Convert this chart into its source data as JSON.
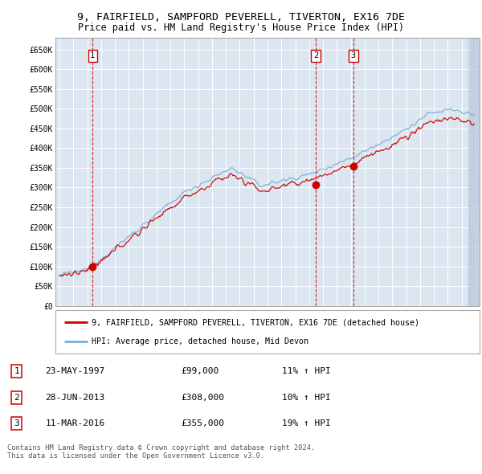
{
  "title": "9, FAIRFIELD, SAMPFORD PEVERELL, TIVERTON, EX16 7DE",
  "subtitle": "Price paid vs. HM Land Registry's House Price Index (HPI)",
  "title_fontsize": 9.5,
  "subtitle_fontsize": 8.5,
  "ylabel_ticks": [
    "£0",
    "£50K",
    "£100K",
    "£150K",
    "£200K",
    "£250K",
    "£300K",
    "£350K",
    "£400K",
    "£450K",
    "£500K",
    "£550K",
    "£600K",
    "£650K"
  ],
  "ytick_values": [
    0,
    50000,
    100000,
    150000,
    200000,
    250000,
    300000,
    350000,
    400000,
    450000,
    500000,
    550000,
    600000,
    650000
  ],
  "xlim_start": 1994.7,
  "xlim_end": 2025.3,
  "ylim_min": 0,
  "ylim_max": 680000,
  "plot_bg_color": "#dce6f1",
  "grid_color": "#ffffff",
  "sale_color": "#cc0000",
  "hpi_color": "#7bafd4",
  "sale_label": "9, FAIRFIELD, SAMPFORD PEVERELL, TIVERTON, EX16 7DE (detached house)",
  "hpi_label": "HPI: Average price, detached house, Mid Devon",
  "transactions": [
    {
      "num": 1,
      "date_label": "23-MAY-1997",
      "price": 99000,
      "pct": "11%",
      "direction": "↑",
      "year": 1997.38
    },
    {
      "num": 2,
      "date_label": "28-JUN-2013",
      "price": 308000,
      "pct": "10%",
      "direction": "↑",
      "year": 2013.49
    },
    {
      "num": 3,
      "date_label": "11-MAR-2016",
      "price": 355000,
      "pct": "19%",
      "direction": "↑",
      "year": 2016.19
    }
  ],
  "footer1": "Contains HM Land Registry data © Crown copyright and database right 2024.",
  "footer2": "This data is licensed under the Open Government Licence v3.0.",
  "hatch_end_year": 2025.3
}
